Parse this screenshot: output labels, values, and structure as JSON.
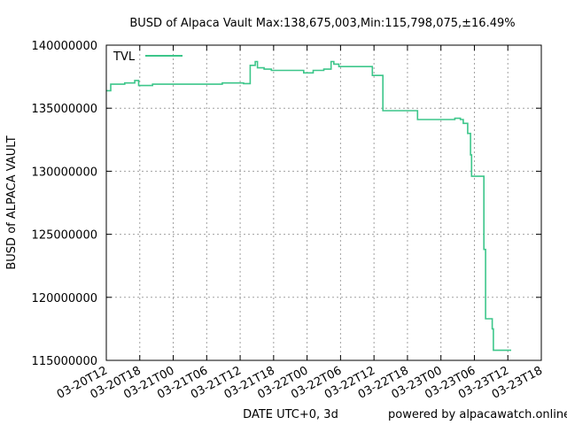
{
  "chart_data": {
    "type": "line",
    "title": "BUSD of Alpaca Vault Max:138,675,003,Min:115,798,075,±16.49%",
    "xlabel": "DATE UTC+0, 3d",
    "ylabel": "BUSD of ALPACA VAULT",
    "credit": "powered by alpacawatch.online",
    "x_unit": "hours since 03-20T12",
    "xlim": [
      0,
      78
    ],
    "ylim": [
      115000000,
      140000000
    ],
    "x_ticks": [
      {
        "x": 0,
        "label": "03-20T12"
      },
      {
        "x": 6,
        "label": "03-20T18"
      },
      {
        "x": 12,
        "label": "03-21T00"
      },
      {
        "x": 18,
        "label": "03-21T06"
      },
      {
        "x": 24,
        "label": "03-21T12"
      },
      {
        "x": 30,
        "label": "03-21T18"
      },
      {
        "x": 36,
        "label": "03-22T00"
      },
      {
        "x": 42,
        "label": "03-22T06"
      },
      {
        "x": 48,
        "label": "03-22T12"
      },
      {
        "x": 54,
        "label": "03-22T18"
      },
      {
        "x": 60,
        "label": "03-23T00"
      },
      {
        "x": 66,
        "label": "03-23T06"
      },
      {
        "x": 72,
        "label": "03-23T12"
      },
      {
        "x": 78,
        "label": "03-23T18"
      }
    ],
    "y_ticks": [
      {
        "y": 115000000,
        "label": "115000000"
      },
      {
        "y": 120000000,
        "label": "120000000"
      },
      {
        "y": 125000000,
        "label": "125000000"
      },
      {
        "y": 130000000,
        "label": "130000000"
      },
      {
        "y": 135000000,
        "label": "135000000"
      },
      {
        "y": 140000000,
        "label": "140000000"
      }
    ],
    "grid": true,
    "legend_position": "top-left",
    "series": [
      {
        "name": "TVL",
        "color": "#3cc68a",
        "step": true,
        "points": [
          [
            0.0,
            136390000
          ],
          [
            0.8,
            136900000
          ],
          [
            3.3,
            137000000
          ],
          [
            5.1,
            137200000
          ],
          [
            5.8,
            136800000
          ],
          [
            8.3,
            136900000
          ],
          [
            20.8,
            137000000
          ],
          [
            24.6,
            136950000
          ],
          [
            25.8,
            138400000
          ],
          [
            26.7,
            138700000
          ],
          [
            27.1,
            138200000
          ],
          [
            28.3,
            138100000
          ],
          [
            29.6,
            138000000
          ],
          [
            35.4,
            137800000
          ],
          [
            37.1,
            138000000
          ],
          [
            39.0,
            138100000
          ],
          [
            40.3,
            138700000
          ],
          [
            40.8,
            138500000
          ],
          [
            41.7,
            138300000
          ],
          [
            47.7,
            137600000
          ],
          [
            49.6,
            134800000
          ],
          [
            55.8,
            134100000
          ],
          [
            62.5,
            134200000
          ],
          [
            63.5,
            134100000
          ],
          [
            64.0,
            133800000
          ],
          [
            64.8,
            133000000
          ],
          [
            65.3,
            131300000
          ],
          [
            65.5,
            129600000
          ],
          [
            67.7,
            123800000
          ],
          [
            68.0,
            118300000
          ],
          [
            69.2,
            117500000
          ],
          [
            69.4,
            115800000
          ],
          [
            72.6,
            115800000
          ]
        ]
      }
    ]
  }
}
